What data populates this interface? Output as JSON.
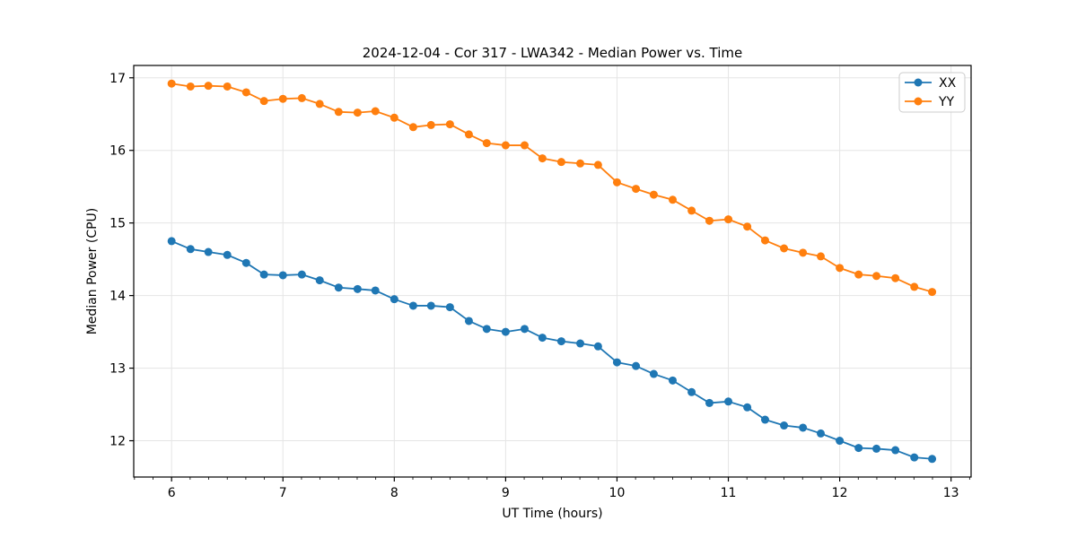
{
  "figure": {
    "background_color": "#ffffff",
    "grid_color": "#e5e5e5",
    "spine_color": "#000000",
    "tick_color": "#000000",
    "text_color": "#000000",
    "legend_border_color": "#cccccc",
    "legend_background": "rgba(255,255,255,0.85)"
  },
  "chart_data": {
    "type": "line",
    "title": "2024-12-04 - Cor 317 - LWA342 - Median Power vs. Time",
    "xlabel": "UT Time (hours)",
    "ylabel": "Median Power (CPU)",
    "xlim": [
      5.66,
      13.18
    ],
    "ylim": [
      11.5,
      17.17
    ],
    "x_major_ticks": [
      6,
      7,
      8,
      9,
      10,
      11,
      12,
      13
    ],
    "y_major_ticks": [
      12,
      13,
      14,
      15,
      16,
      17
    ],
    "x_minor_ticks_per_hour": 6,
    "grid": true,
    "legend_position": "upper right",
    "marker": "circle",
    "x": [
      6,
      6.17,
      6.33,
      6.5,
      6.67,
      6.83,
      7,
      7.17,
      7.33,
      7.5,
      7.67,
      7.83,
      8,
      8.17,
      8.33,
      8.5,
      8.67,
      8.83,
      9,
      9.17,
      9.33,
      9.5,
      9.67,
      9.83,
      10,
      10.17,
      10.33,
      10.5,
      10.67,
      10.83,
      11,
      11.17,
      11.33,
      11.5,
      11.67,
      11.83,
      12,
      12.17,
      12.33,
      12.5,
      12.67,
      12.83
    ],
    "series": [
      {
        "name": "XX",
        "color": "#1f77b4",
        "values": [
          14.75,
          14.64,
          14.6,
          14.56,
          14.45,
          14.29,
          14.28,
          14.29,
          14.21,
          14.11,
          14.09,
          14.07,
          13.95,
          13.86,
          13.86,
          13.84,
          13.65,
          13.54,
          13.5,
          13.54,
          13.42,
          13.37,
          13.34,
          13.3,
          13.08,
          13.03,
          12.92,
          12.83,
          12.67,
          12.52,
          12.54,
          12.46,
          12.29,
          12.21,
          12.18,
          12.1,
          12.0,
          11.9,
          11.89,
          11.87,
          11.77,
          11.75
        ]
      },
      {
        "name": "YY",
        "color": "#ff7f0e",
        "values": [
          16.92,
          16.88,
          16.89,
          16.88,
          16.8,
          16.68,
          16.71,
          16.72,
          16.64,
          16.53,
          16.52,
          16.54,
          16.45,
          16.32,
          16.35,
          16.36,
          16.22,
          16.1,
          16.07,
          16.07,
          15.89,
          15.84,
          15.82,
          15.8,
          15.56,
          15.47,
          15.39,
          15.32,
          15.17,
          15.03,
          15.05,
          14.95,
          14.76,
          14.65,
          14.59,
          14.54,
          14.38,
          14.29,
          14.27,
          14.24,
          14.12,
          14.05
        ]
      }
    ]
  }
}
